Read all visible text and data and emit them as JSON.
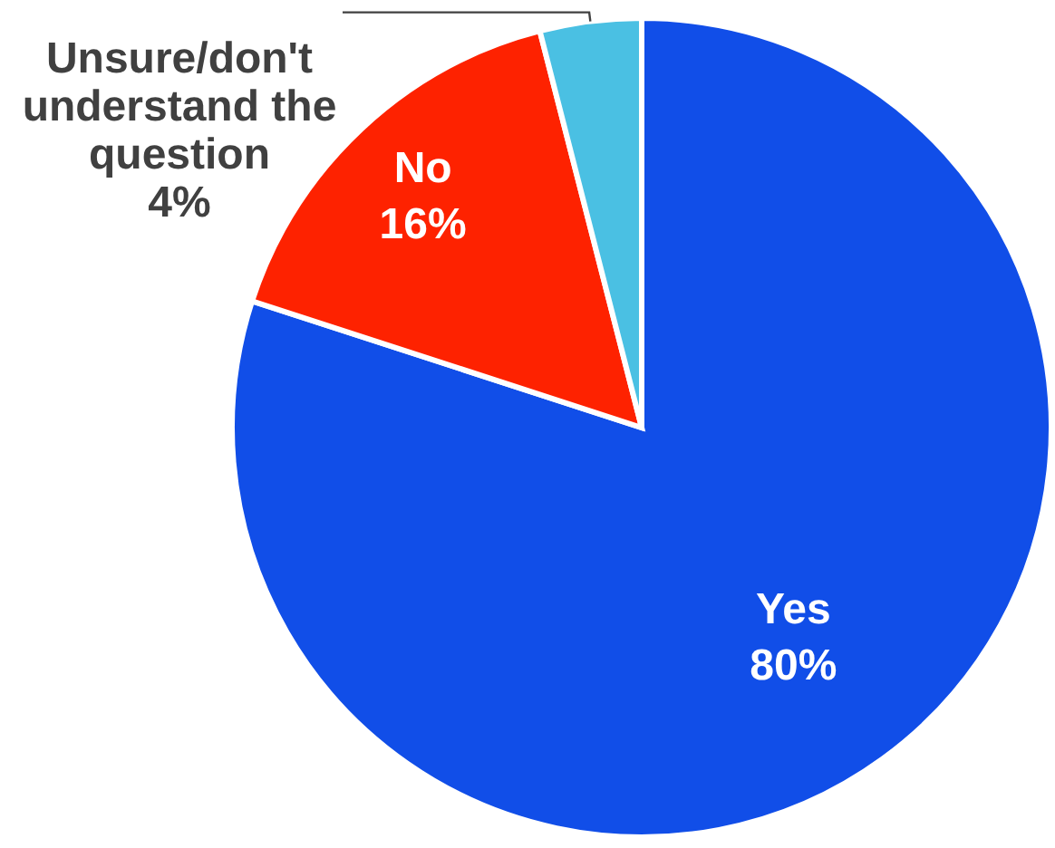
{
  "chart_data": {
    "type": "pie",
    "categories": [
      "Yes",
      "No",
      "Unsure/don't understand the question"
    ],
    "values": [
      80,
      16,
      4
    ],
    "colors": [
      "#114ee8",
      "#fe2200",
      "#4ac0e3"
    ],
    "value_labels": [
      "80%",
      "16%",
      "4%"
    ]
  }
}
